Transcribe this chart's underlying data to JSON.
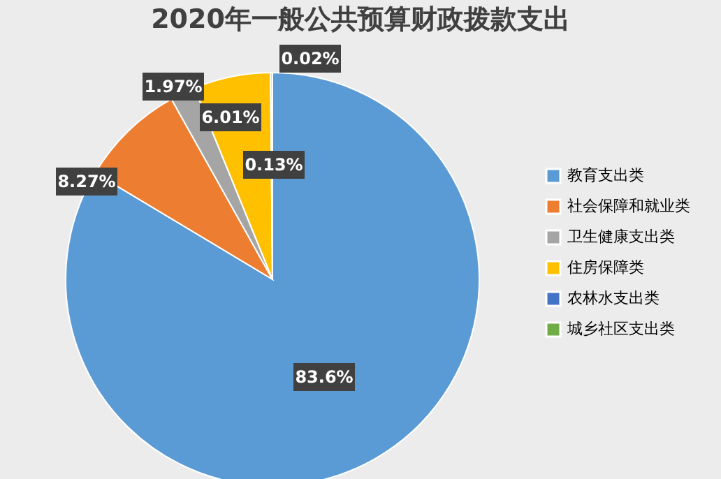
{
  "chart_data": {
    "type": "pie",
    "title": "2020年一般公共预算财政拨款支出",
    "categories": [
      "教育支出类",
      "社会保障和就业类",
      "卫生健康支出类",
      "住房保障类",
      "农林水支出类",
      "城乡社区支出类"
    ],
    "values": [
      83.6,
      8.27,
      1.97,
      6.01,
      0.13,
      0.02
    ],
    "colors": [
      "#5b9bd5",
      "#ed7d31",
      "#a5a5a5",
      "#ffc000",
      "#4472c4",
      "#70ad47"
    ],
    "value_labels": [
      "83.6%",
      "8.27%",
      "1.97%",
      "6.01%",
      "0.13%",
      "0.02%"
    ],
    "legend": "right"
  }
}
